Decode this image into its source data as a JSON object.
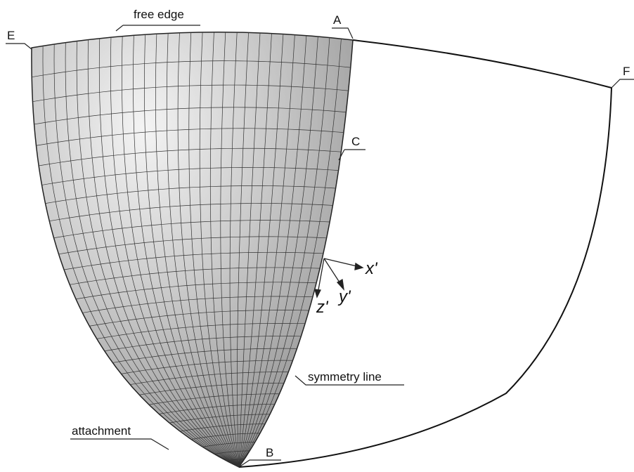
{
  "labels": {
    "free_edge": "free edge",
    "symmetry_line": "symmetry line",
    "attachment": "attachment",
    "A": "A",
    "B": "B",
    "C": "C",
    "E": "E",
    "F": "F"
  },
  "axes": {
    "x": "x'",
    "y": "y'",
    "z": "z'"
  }
}
